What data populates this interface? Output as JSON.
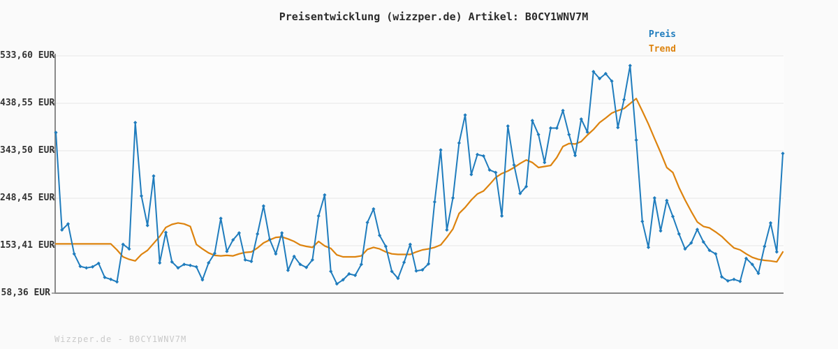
{
  "title": "Preisentwicklung (wizzper.de) Artikel: B0CY1WNV7M",
  "legend": {
    "items": [
      {
        "label": "Preis",
        "color": "#1f7cbd"
      },
      {
        "label": "Trend",
        "color": "#dd830e"
      }
    ]
  },
  "footer": {
    "watermark": "Wizzper.de - B0CY1WNV7M"
  },
  "colors": {
    "background": "#fafafa",
    "plot_background": "#fcfcfc",
    "grid": "#e6e6e6",
    "axis": "#8a8a8a",
    "price": "#1f7cbd",
    "trend": "#dd830e",
    "title_text": "#2b2b2b",
    "tick_text": "#333333",
    "watermark_text": "#c9c9c9"
  },
  "chart_data": {
    "type": "line",
    "title": "Preisentwicklung (wizzper.de) Artikel: B0CY1WNV7M",
    "xlabel": "",
    "ylabel": "EUR",
    "unit": "EUR",
    "grid": true,
    "legend_position": "top-right",
    "x_axis": {
      "labels_visible": false,
      "num_points": 120
    },
    "ylim": [
      58.36,
      533.6
    ],
    "y_tick_values": [
      533.6,
      438.55,
      343.5,
      248.45,
      153.41,
      58.36
    ],
    "y_tick_labels": [
      "533,60 EUR",
      "438,55 EUR",
      "343,50 EUR",
      "248,45 EUR",
      "153,41 EUR",
      "58,36 EUR"
    ],
    "series": [
      {
        "name": "Preis",
        "color": "#1f7cbd",
        "marker": "diamond",
        "values": [
          380,
          185,
          197,
          137,
          112,
          109,
          111,
          118,
          90,
          86,
          81,
          156,
          147,
          400,
          253,
          194,
          293,
          119,
          180,
          121,
          109,
          116,
          114,
          111,
          85,
          119,
          138,
          208,
          142,
          165,
          179,
          125,
          122,
          177,
          233,
          166,
          137,
          179,
          104,
          132,
          116,
          110,
          125,
          213,
          255,
          102,
          77,
          85,
          97,
          94,
          116,
          200,
          227,
          174,
          152,
          102,
          88,
          120,
          156,
          103,
          105,
          117,
          241,
          345,
          185,
          249,
          359,
          415,
          296,
          336,
          333,
          305,
          300,
          213,
          393,
          315,
          258,
          272,
          404,
          376,
          320,
          389,
          389,
          424,
          376,
          334,
          407,
          381,
          502,
          488,
          498,
          483,
          390,
          446,
          514,
          365,
          202,
          150,
          249,
          183,
          244,
          212,
          177,
          147,
          159,
          186,
          161,
          144,
          137,
          91,
          83,
          86,
          82,
          128,
          116,
          98,
          152,
          199,
          141,
          338
        ]
      },
      {
        "name": "Trend",
        "color": "#dd830e",
        "marker": "none",
        "values": [
          157,
          157,
          157,
          157,
          157,
          157,
          157,
          157,
          157,
          157,
          145,
          131,
          126,
          123,
          136,
          144,
          158,
          172,
          190,
          196,
          199,
          197,
          192,
          156,
          147,
          139,
          134,
          133,
          134,
          133,
          137,
          140,
          141,
          149,
          159,
          165,
          170,
          171,
          167,
          162,
          155,
          152,
          150,
          162,
          153,
          148,
          135,
          131,
          131,
          131,
          133,
          146,
          150,
          147,
          141,
          137,
          136,
          136,
          136,
          141,
          145,
          147,
          150,
          155,
          170,
          187,
          218,
          230,
          245,
          257,
          263,
          276,
          290,
          298,
          303,
          310,
          318,
          325,
          320,
          310,
          312,
          314,
          330,
          352,
          358,
          357,
          362,
          375,
          386,
          400,
          409,
          419,
          424,
          428,
          438,
          448,
          423,
          397,
          368,
          340,
          310,
          300,
          270,
          245,
          222,
          201,
          192,
          189,
          181,
          172,
          160,
          149,
          145,
          137,
          130,
          126,
          124,
          123,
          121,
          141
        ]
      }
    ]
  }
}
